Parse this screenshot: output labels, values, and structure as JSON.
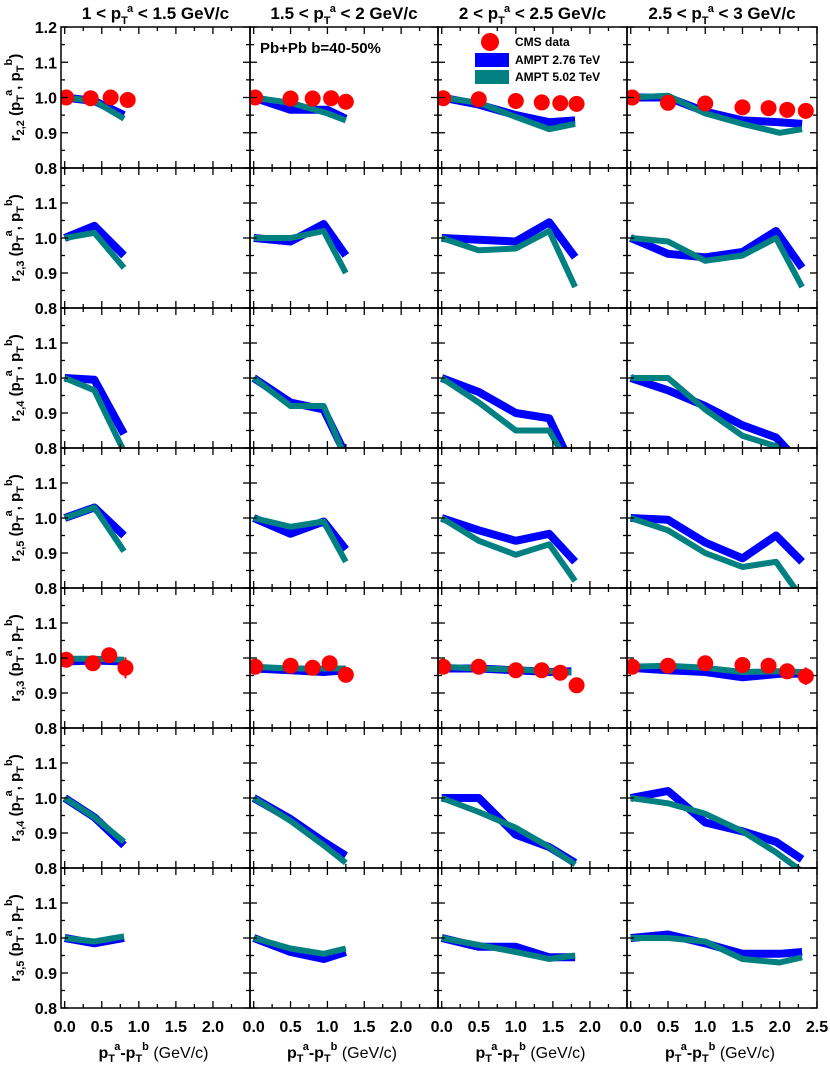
{
  "chart_data": {
    "type": "line",
    "annotation": "Pb+Pb  b=40-50%",
    "legend": {
      "placement": "top-right of second column, first row",
      "entries": [
        {
          "label": "CMS  data",
          "color": "#ff0000",
          "kind": "marker"
        },
        {
          "label": "AMPT  2.76 TeV",
          "color": "#0000ff",
          "kind": "band"
        },
        {
          "label": "AMPT  5.02 TeV",
          "color": "#008080",
          "kind": "band"
        }
      ]
    },
    "columns": [
      {
        "title": "1 < p<sub>T</sub><sup>a</sup> < 1.5 GeV/c",
        "title_parts": [
          "1 < p",
          "T",
          "a",
          " < 1.5 GeV/c"
        ]
      },
      {
        "title_parts": [
          "1.5 < p",
          "T",
          "a",
          " < 2 GeV/c"
        ]
      },
      {
        "title_parts": [
          "2 < p",
          "T",
          "a",
          " < 2.5 GeV/c"
        ]
      },
      {
        "title_parts": [
          "2.5 < p",
          "T",
          "a",
          " < 3 GeV/c"
        ]
      }
    ],
    "rows": [
      {
        "ylabel_main": "r",
        "ylabel_sub": "2,2"
      },
      {
        "ylabel_main": "r",
        "ylabel_sub": "2,3"
      },
      {
        "ylabel_main": "r",
        "ylabel_sub": "2,4"
      },
      {
        "ylabel_main": "r",
        "ylabel_sub": "2,5"
      },
      {
        "ylabel_main": "r",
        "ylabel_sub": "3,3"
      },
      {
        "ylabel_main": "r",
        "ylabel_sub": "3,4"
      },
      {
        "ylabel_main": "r",
        "ylabel_sub": "3,5"
      }
    ],
    "ylim": [
      0.8,
      1.2
    ],
    "yticks": [
      "0.8",
      "0.9",
      "1.0",
      "1.1",
      "1.2"
    ],
    "xlim": [
      -0.05,
      2.5
    ],
    "xticks_left": [
      "0.0",
      "0.5",
      "1.0",
      "1.5",
      "2.0"
    ],
    "xticks_last": [
      "0.0",
      "0.5",
      "1.0",
      "1.5",
      "2.0",
      "2.5"
    ],
    "xlabel_parts": [
      "p",
      "T",
      "a",
      "-p",
      "T",
      "b",
      " (GeV/c)"
    ],
    "panels": [
      [
        {
          "x": [
            0,
            0.4,
            0.8
          ],
          "ampt276": [
            1.0,
            0.99,
            0.95
          ],
          "ampt502": [
            1.0,
            0.99,
            0.94
          ],
          "cms": {
            "x": [
              0.02,
              0.35,
              0.62,
              0.85
            ],
            "y": [
              1.0,
              0.998,
              1.0,
              0.993
            ],
            "err": [
              0.01,
              0.01,
              0.01,
              0.01
            ]
          }
        },
        {
          "x": [
            0,
            0.5,
            1.0,
            1.25
          ],
          "ampt276": [
            1.0,
            0.965,
            0.965,
            0.94
          ],
          "ampt502": [
            1.0,
            0.985,
            0.955,
            0.935
          ],
          "cms": {
            "x": [
              0.02,
              0.5,
              0.8,
              1.05,
              1.25
            ],
            "y": [
              1.0,
              0.997,
              0.997,
              0.998,
              0.988
            ],
            "err": [
              0.01,
              0.01,
              0.01,
              0.01,
              0.01
            ]
          }
        },
        {
          "x": [
            0,
            0.5,
            1.0,
            1.45,
            1.8
          ],
          "ampt276": [
            1.0,
            0.98,
            0.95,
            0.93,
            0.935
          ],
          "ampt502": [
            1.0,
            0.985,
            0.945,
            0.91,
            0.925
          ],
          "cms": {
            "x": [
              0.02,
              0.5,
              1.0,
              1.35,
              1.6,
              1.82
            ],
            "y": [
              0.998,
              0.995,
              0.99,
              0.986,
              0.984,
              0.982
            ],
            "err": [
              0.01,
              0.01,
              0.01,
              0.01,
              0.01,
              0.01
            ]
          }
        },
        {
          "x": [
            0,
            0.5,
            1.0,
            1.5,
            2.0,
            2.3
          ],
          "ampt276": [
            1.0,
            1.0,
            0.96,
            0.935,
            0.93,
            0.925
          ],
          "ampt502": [
            1.0,
            1.005,
            0.955,
            0.925,
            0.9,
            0.91
          ],
          "cms": {
            "x": [
              0.02,
              0.5,
              1.0,
              1.5,
              1.85,
              2.1,
              2.35
            ],
            "y": [
              1.0,
              0.985,
              0.983,
              0.972,
              0.97,
              0.965,
              0.962
            ],
            "err": [
              0.015,
              0.015,
              0.015,
              0.015,
              0.015,
              0.015,
              0.015
            ]
          }
        }
      ],
      [
        {
          "x": [
            0,
            0.4,
            0.8
          ],
          "ampt276": [
            1.0,
            1.035,
            0.95
          ],
          "ampt502": [
            1.0,
            1.015,
            0.915
          ],
          "cms": null
        },
        {
          "x": [
            0,
            0.5,
            0.95,
            1.25
          ],
          "ampt276": [
            1.0,
            0.99,
            1.04,
            0.95
          ],
          "ampt502": [
            1.0,
            1.0,
            1.02,
            0.9
          ],
          "cms": null
        },
        {
          "x": [
            0,
            0.5,
            1.0,
            1.45,
            1.8
          ],
          "ampt276": [
            1.0,
            0.995,
            0.99,
            1.045,
            0.945
          ],
          "ampt502": [
            1.0,
            0.965,
            0.97,
            1.02,
            0.86
          ],
          "cms": null
        },
        {
          "x": [
            0,
            0.5,
            1.0,
            1.5,
            1.95,
            2.3
          ],
          "ampt276": [
            1.0,
            0.955,
            0.945,
            0.96,
            1.02,
            0.915
          ],
          "ampt502": [
            1.0,
            0.99,
            0.935,
            0.95,
            1.0,
            0.86
          ],
          "cms": null
        }
      ],
      [
        {
          "x": [
            0,
            0.4,
            0.8
          ],
          "ampt276": [
            1.0,
            0.995,
            0.84
          ],
          "ampt502": [
            1.0,
            0.965,
            0.79
          ],
          "cms": null
        },
        {
          "x": [
            0,
            0.5,
            0.95,
            1.25
          ],
          "ampt276": [
            1.0,
            0.93,
            0.91,
            0.78
          ],
          "ampt502": [
            1.0,
            0.92,
            0.92,
            0.77
          ],
          "cms": null
        },
        {
          "x": [
            0,
            0.5,
            1.0,
            1.45,
            1.8
          ],
          "ampt276": [
            1.0,
            0.96,
            0.9,
            0.885,
            0.73
          ],
          "ampt502": [
            1.0,
            0.93,
            0.85,
            0.85,
            0.72
          ],
          "cms": null
        },
        {
          "x": [
            0,
            0.5,
            1.0,
            1.5,
            1.95,
            2.3
          ],
          "ampt276": [
            1.0,
            0.965,
            0.92,
            0.865,
            0.83,
            0.75
          ],
          "ampt502": [
            1.0,
            1.0,
            0.91,
            0.835,
            0.805,
            0.74
          ],
          "cms": null
        }
      ],
      [
        {
          "x": [
            0,
            0.4,
            0.8
          ],
          "ampt276": [
            1.0,
            1.03,
            0.95
          ],
          "ampt502": [
            1.0,
            1.03,
            0.905
          ],
          "cms": null
        },
        {
          "x": [
            0,
            0.5,
            0.95,
            1.25
          ],
          "ampt276": [
            1.0,
            0.955,
            0.99,
            0.91
          ],
          "ampt502": [
            1.0,
            0.975,
            0.99,
            0.875
          ],
          "cms": null
        },
        {
          "x": [
            0,
            0.5,
            1.0,
            1.45,
            1.8
          ],
          "ampt276": [
            1.0,
            0.965,
            0.935,
            0.955,
            0.875
          ],
          "ampt502": [
            1.0,
            0.935,
            0.895,
            0.925,
            0.82
          ],
          "cms": null
        },
        {
          "x": [
            0,
            0.5,
            1.0,
            1.5,
            1.95,
            2.3
          ],
          "ampt276": [
            1.0,
            0.995,
            0.93,
            0.885,
            0.95,
            0.875
          ],
          "ampt502": [
            1.0,
            0.965,
            0.9,
            0.86,
            0.875,
            0.77
          ],
          "cms": null
        }
      ],
      [
        {
          "x": [
            0,
            0.4,
            0.8
          ],
          "ampt276": [
            0.99,
            0.993,
            0.99
          ],
          "ampt502": [
            0.998,
            0.998,
            0.995
          ],
          "cms": {
            "x": [
              0.02,
              0.38,
              0.6,
              0.82
            ],
            "y": [
              0.995,
              0.985,
              1.008,
              0.972
            ],
            "err": [
              0.015,
              0.015,
              0.015,
              0.03
            ]
          }
        },
        {
          "x": [
            0,
            0.5,
            0.95,
            1.25
          ],
          "ampt276": [
            0.97,
            0.965,
            0.96,
            0.965
          ],
          "ampt502": [
            0.975,
            0.97,
            0.97,
            0.97
          ],
          "cms": {
            "x": [
              0.02,
              0.5,
              0.8,
              1.03,
              1.25
            ],
            "y": [
              0.975,
              0.978,
              0.972,
              0.985,
              0.952
            ],
            "err": [
              0.015,
              0.015,
              0.015,
              0.015,
              0.015
            ]
          }
        },
        {
          "x": [
            0,
            0.5,
            1.0,
            1.45,
            1.75
          ],
          "ampt276": [
            0.97,
            0.97,
            0.965,
            0.96,
            0.962
          ],
          "ampt502": [
            0.975,
            0.97,
            0.967,
            0.962,
            0.96
          ],
          "cms": {
            "x": [
              0.02,
              0.5,
              1.0,
              1.35,
              1.6,
              1.82
            ],
            "y": [
              0.975,
              0.975,
              0.965,
              0.965,
              0.958,
              0.922
            ],
            "err": [
              0.01,
              0.01,
              0.01,
              0.01,
              0.01,
              0.01
            ]
          }
        },
        {
          "x": [
            0,
            0.5,
            1.0,
            1.5,
            2.0,
            2.3
          ],
          "ampt276": [
            0.972,
            0.965,
            0.96,
            0.945,
            0.955,
            0.955
          ],
          "ampt502": [
            0.975,
            0.978,
            0.972,
            0.96,
            0.962,
            0.96
          ],
          "cms": {
            "x": [
              0.02,
              0.5,
              1.0,
              1.5,
              1.85,
              2.1,
              2.35
            ],
            "y": [
              0.975,
              0.978,
              0.985,
              0.98,
              0.978,
              0.962,
              0.948
            ],
            "err": [
              0.02,
              0.02,
              0.02,
              0.02,
              0.02,
              0.02,
              0.025
            ]
          }
        }
      ],
      [
        {
          "x": [
            0,
            0.4,
            0.8
          ],
          "ampt276": [
            1.0,
            0.945,
            0.865
          ],
          "ampt502": [
            1.0,
            0.945,
            0.875
          ],
          "cms": null
        },
        {
          "x": [
            0,
            0.5,
            0.95,
            1.25
          ],
          "ampt276": [
            1.0,
            0.94,
            0.875,
            0.835
          ],
          "ampt502": [
            1.0,
            0.935,
            0.865,
            0.815
          ],
          "cms": null
        },
        {
          "x": [
            0,
            0.5,
            1.0,
            1.45,
            1.8
          ],
          "ampt276": [
            1.0,
            1.0,
            0.895,
            0.86,
            0.815
          ],
          "ampt502": [
            1.0,
            0.96,
            0.915,
            0.86,
            0.81
          ],
          "cms": null
        },
        {
          "x": [
            0,
            0.5,
            1.0,
            1.5,
            1.95,
            2.3
          ],
          "ampt276": [
            1.0,
            1.02,
            0.93,
            0.905,
            0.875,
            0.825
          ],
          "ampt502": [
            1.0,
            0.985,
            0.955,
            0.905,
            0.845,
            0.79
          ],
          "cms": null
        }
      ],
      [
        {
          "x": [
            0,
            0.4,
            0.8
          ],
          "ampt276": [
            1.0,
            0.985,
            1.0
          ],
          "ampt502": [
            1.0,
            0.99,
            1.005
          ],
          "cms": null
        },
        {
          "x": [
            0,
            0.5,
            0.95,
            1.25
          ],
          "ampt276": [
            1.0,
            0.96,
            0.94,
            0.96
          ],
          "ampt502": [
            1.0,
            0.97,
            0.955,
            0.97
          ],
          "cms": null
        },
        {
          "x": [
            0,
            0.5,
            1.0,
            1.45,
            1.8
          ],
          "ampt276": [
            1.0,
            0.975,
            0.975,
            0.945,
            0.945
          ],
          "ampt502": [
            1.0,
            0.98,
            0.96,
            0.94,
            0.95
          ],
          "cms": null
        },
        {
          "x": [
            0,
            0.5,
            1.0,
            1.5,
            2.0,
            2.3
          ],
          "ampt276": [
            1.0,
            1.01,
            0.985,
            0.955,
            0.955,
            0.96
          ],
          "ampt502": [
            1.0,
            1.0,
            0.99,
            0.94,
            0.93,
            0.945
          ],
          "cms": null
        }
      ]
    ]
  }
}
